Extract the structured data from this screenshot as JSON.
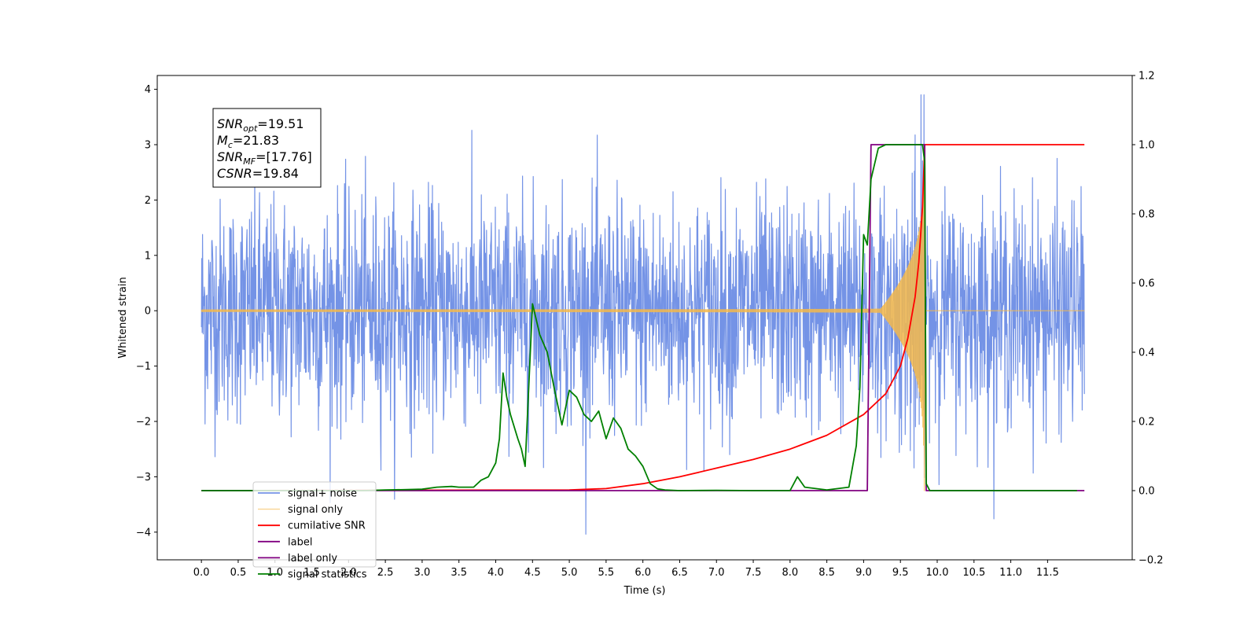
{
  "chart_data": {
    "type": "line",
    "xlabel": "Time (s)",
    "ylabel_left": "Whitened strain",
    "ylabel_right": "",
    "xlim": [
      -0.6,
      12.65
    ],
    "ylim_left": [
      -4.5,
      4.25
    ],
    "ylim_right": [
      -0.2,
      1.2
    ],
    "x_ticks": [
      0.0,
      0.5,
      1.0,
      1.5,
      2.0,
      2.5,
      3.0,
      3.5,
      4.0,
      4.5,
      5.0,
      5.5,
      6.0,
      6.5,
      7.0,
      7.5,
      8.0,
      8.5,
      9.0,
      9.5,
      10.0,
      10.5,
      11.0,
      11.5
    ],
    "x_tick_labels": [
      "0.0",
      "0.5",
      "1.0",
      "1.5",
      "2.0",
      "2.5",
      "3.0",
      "3.5",
      "4.0",
      "4.5",
      "5.0",
      "5.5",
      "6.0",
      "6.5",
      "7.0",
      "7.5",
      "8.0",
      "8.5",
      "9.0",
      "9.5",
      "10.0",
      "10.5",
      "11.0",
      "11.5"
    ],
    "y_left_ticks": [
      4,
      3,
      2,
      1,
      0,
      -1,
      -2,
      -3,
      -4
    ],
    "y_left_tick_labels": [
      "4",
      "3",
      "2",
      "1",
      "0",
      "−1",
      "−2",
      "−3",
      "−4"
    ],
    "y_right_ticks": [
      1.2,
      1.0,
      0.8,
      0.6,
      0.4,
      0.2,
      0.0,
      -0.2
    ],
    "y_right_tick_labels": [
      "1.2",
      "1.0",
      "0.8",
      "0.6",
      "0.4",
      "0.2",
      "0.0",
      "−0.2"
    ],
    "grid": false,
    "legend_position": "bottom-left",
    "annotation": {
      "lines": [
        {
          "symbol": "SNR",
          "sub": "opt",
          "value": "=19.51"
        },
        {
          "symbol": "M",
          "sub": "c",
          "value": "=21.83"
        },
        {
          "symbol": "SNR",
          "sub": "MF",
          "value": "=[17.76]"
        },
        {
          "symbol": "CSNR",
          "sub": "",
          "value": "=19.84"
        }
      ]
    },
    "series": [
      {
        "name": "signal+ noise",
        "axis": "left",
        "color": "#7493e6",
        "x_range": [
          0.0,
          12.0
        ],
        "noise_std": 1.0,
        "y_range": [
          -4.1,
          3.9
        ],
        "description_values": "white noise of unit variance plus chirp"
      },
      {
        "name": "signal only",
        "axis": "left",
        "color": "#f5b84a",
        "x_range": [
          0.0,
          12.0
        ],
        "chirp_start": 0.0,
        "merger_time": 9.83,
        "peak_amplitude": 3.5
      },
      {
        "name": "cumilative SNR",
        "axis": "right",
        "color": "#ff0000",
        "x": [
          0.0,
          5.0,
          5.5,
          6.0,
          6.5,
          7.0,
          7.5,
          8.0,
          8.5,
          9.0,
          9.3,
          9.5,
          9.6,
          9.7,
          9.75,
          9.8,
          9.83,
          12.0
        ],
        "y": [
          0.0,
          0.002,
          0.006,
          0.02,
          0.04,
          0.065,
          0.09,
          0.12,
          0.16,
          0.22,
          0.28,
          0.36,
          0.44,
          0.56,
          0.66,
          0.82,
          1.0,
          1.0
        ]
      },
      {
        "name": "label",
        "axis": "right",
        "color": "#800080",
        "x": [
          0.0,
          9.05,
          9.1,
          9.83,
          9.85,
          12.0
        ],
        "y": [
          0.0,
          0.0,
          1.0,
          1.0,
          0.0,
          0.0
        ]
      },
      {
        "name": "label only",
        "axis": "right",
        "color": "#800080",
        "x": [
          0.0,
          9.05,
          9.1,
          9.83,
          9.85,
          12.0
        ],
        "y": [
          0.0,
          0.0,
          1.0,
          1.0,
          0.0,
          0.0
        ]
      },
      {
        "name": "signal statistics",
        "axis": "right",
        "color": "#008000",
        "x": [
          0.0,
          2.2,
          2.5,
          2.8,
          3.0,
          3.2,
          3.4,
          3.5,
          3.7,
          3.8,
          3.9,
          4.0,
          4.05,
          4.1,
          4.15,
          4.2,
          4.3,
          4.35,
          4.4,
          4.5,
          4.6,
          4.7,
          4.8,
          4.9,
          5.0,
          5.1,
          5.2,
          5.3,
          5.4,
          5.5,
          5.6,
          5.7,
          5.8,
          5.9,
          6.0,
          6.1,
          6.2,
          6.3,
          6.5,
          7.0,
          7.5,
          8.0,
          8.1,
          8.2,
          8.5,
          8.8,
          8.9,
          8.95,
          9.0,
          9.05,
          9.1,
          9.2,
          9.3,
          9.4,
          9.5,
          9.6,
          9.7,
          9.75,
          9.8,
          9.83,
          9.85,
          9.9,
          10.0,
          11.0,
          11.9
        ],
        "y": [
          0.0,
          0.0,
          0.002,
          0.003,
          0.004,
          0.01,
          0.012,
          0.01,
          0.01,
          0.03,
          0.04,
          0.08,
          0.15,
          0.34,
          0.27,
          0.22,
          0.15,
          0.12,
          0.07,
          0.54,
          0.45,
          0.4,
          0.29,
          0.19,
          0.29,
          0.27,
          0.22,
          0.2,
          0.23,
          0.15,
          0.21,
          0.18,
          0.12,
          0.1,
          0.07,
          0.02,
          0.005,
          0.002,
          0.0,
          0.001,
          0.0,
          0.0,
          0.04,
          0.01,
          0.002,
          0.01,
          0.13,
          0.3,
          0.74,
          0.71,
          0.9,
          0.99,
          1.0,
          1.0,
          1.0,
          1.0,
          1.0,
          1.0,
          1.0,
          0.95,
          0.02,
          0.0,
          0.0,
          0.0,
          0.0
        ]
      }
    ],
    "legend_order": [
      "signal+ noise",
      "signal only",
      "cumilative SNR",
      "label",
      "label only",
      "signal statistics"
    ]
  }
}
